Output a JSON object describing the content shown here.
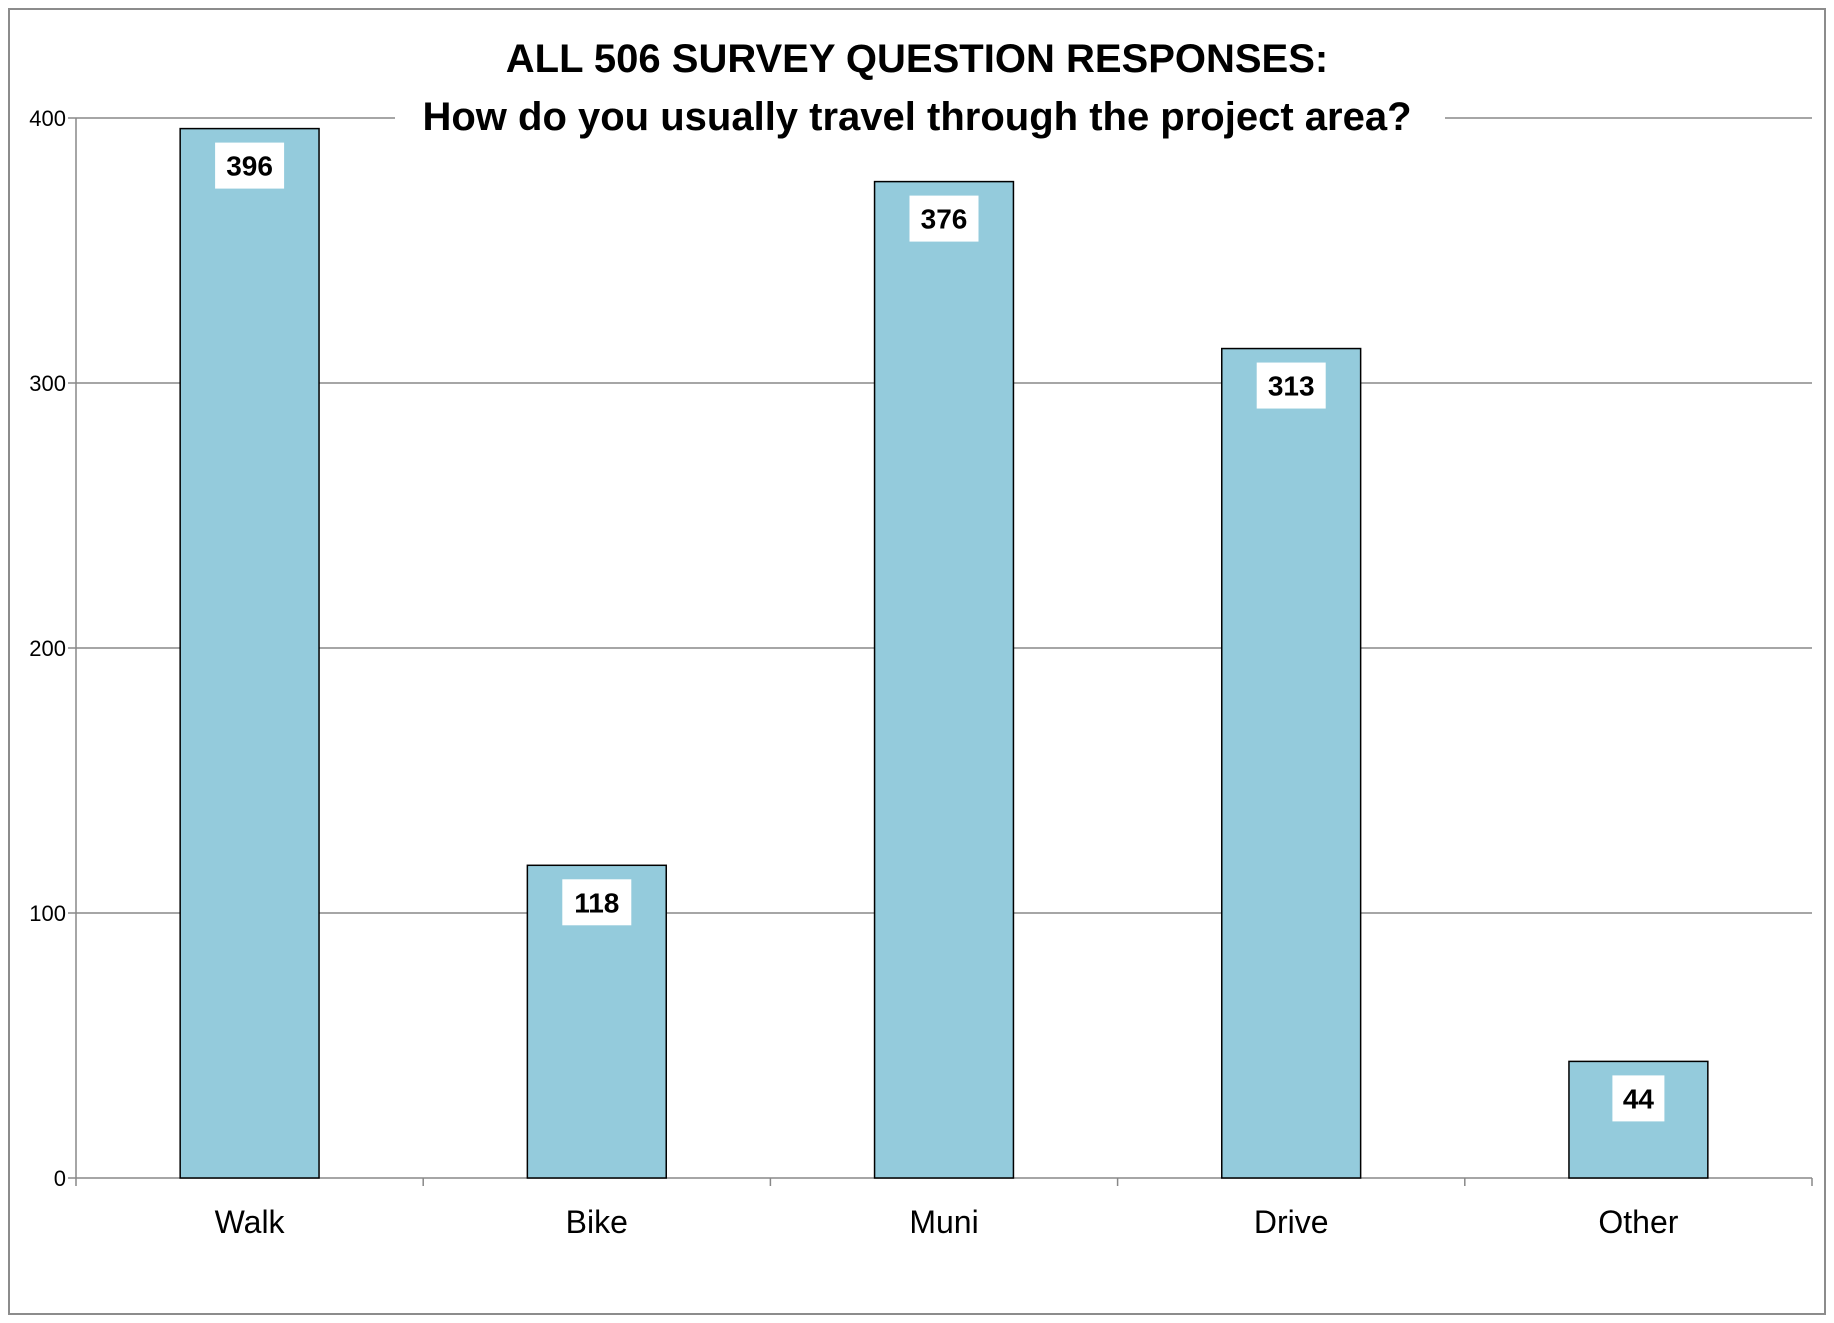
{
  "chart_data": {
    "type": "bar",
    "title": "ALL 506 SURVEY QUESTION RESPONSES:",
    "subtitle": "How do you usually travel through the project area?",
    "categories": [
      "Walk",
      "Bike",
      "Muni",
      "Drive",
      "Other"
    ],
    "values": [
      396,
      118,
      376,
      313,
      44
    ],
    "data_labels": [
      "396",
      "118",
      "376",
      "313",
      "44"
    ],
    "ylim": [
      0,
      400
    ],
    "yticks": [
      0,
      100,
      200,
      300,
      400
    ],
    "ytick_labels": [
      "0",
      "100",
      "200",
      "300",
      "400"
    ],
    "grid": true,
    "legend": "none",
    "colors": {
      "bar_fill": "#94cbdc",
      "bar_stroke": "#000000",
      "grid": "#888888",
      "label_bg": "#ffffff"
    }
  }
}
